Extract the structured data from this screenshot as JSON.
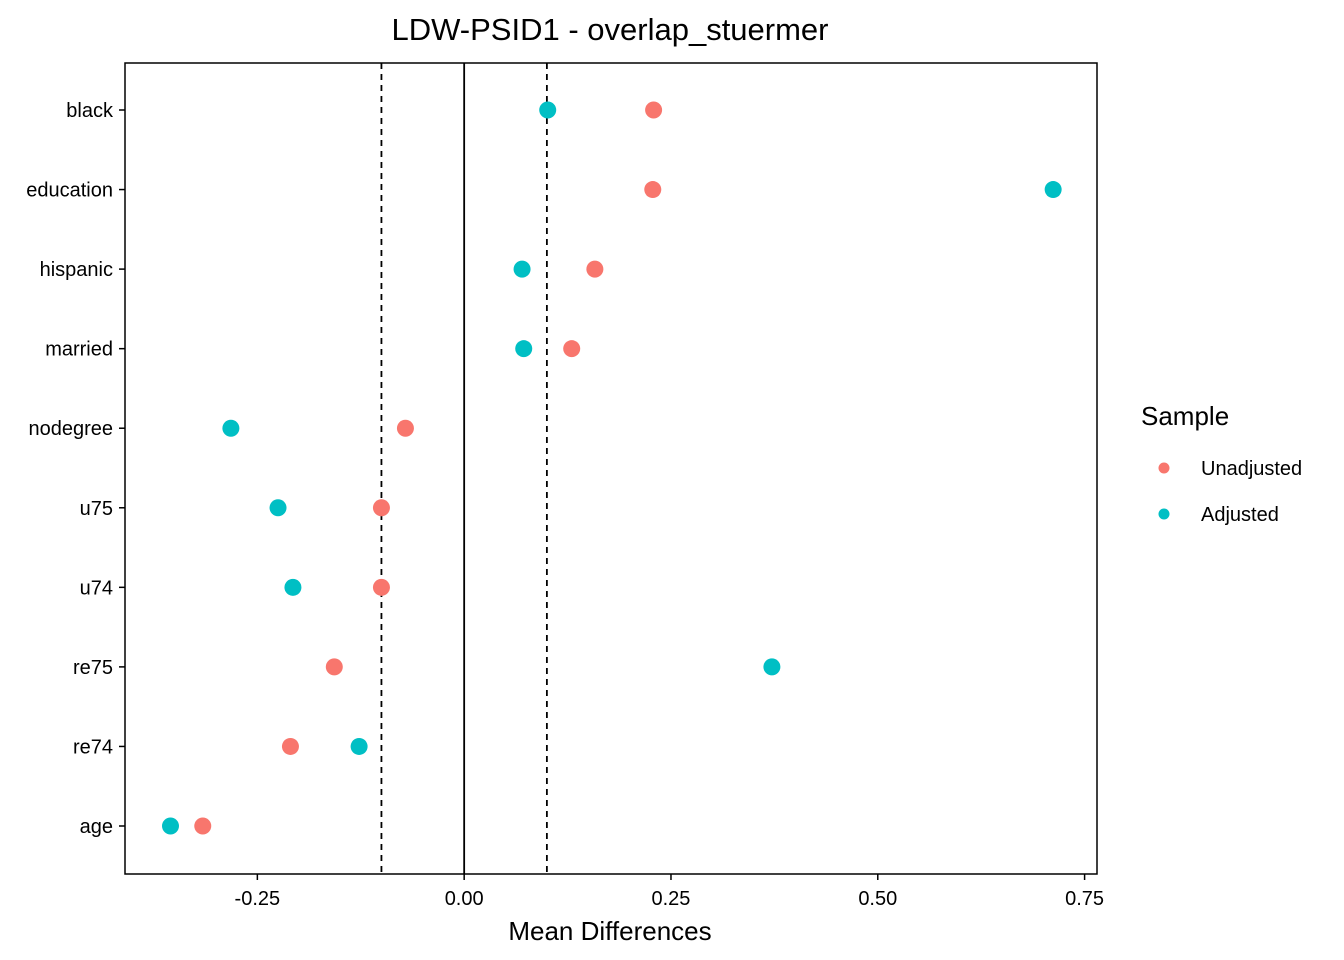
{
  "chart_data": {
    "type": "scatter",
    "title": "LDW-PSID1 - overlap_stuermer",
    "xlabel": "Mean Differences",
    "ylabel": "",
    "xlim": [
      -0.41,
      0.765
    ],
    "x_ticks": [
      -0.25,
      0.0,
      0.25,
      0.5,
      0.75
    ],
    "x_tick_labels": [
      "-0.25",
      "0.00",
      "0.25",
      "0.50",
      "0.75"
    ],
    "categories": [
      "black",
      "education",
      "hispanic",
      "married",
      "nodegree",
      "u75",
      "u74",
      "re75",
      "re74",
      "age"
    ],
    "reference_lines": {
      "solid": [
        0.0
      ],
      "dashed": [
        -0.1,
        0.1
      ]
    },
    "grid": false,
    "legend": {
      "title": "Sample",
      "position": "right"
    },
    "series": [
      {
        "name": "Unadjusted",
        "color": "#F8766D",
        "values": [
          0.229,
          0.228,
          0.158,
          0.13,
          -0.071,
          -0.1,
          -0.1,
          -0.157,
          -0.21,
          -0.316
        ]
      },
      {
        "name": "Adjusted",
        "color": "#00BFC4",
        "values": [
          0.101,
          0.712,
          0.07,
          0.072,
          -0.282,
          -0.225,
          -0.207,
          0.372,
          -0.127,
          -0.355
        ]
      }
    ]
  }
}
